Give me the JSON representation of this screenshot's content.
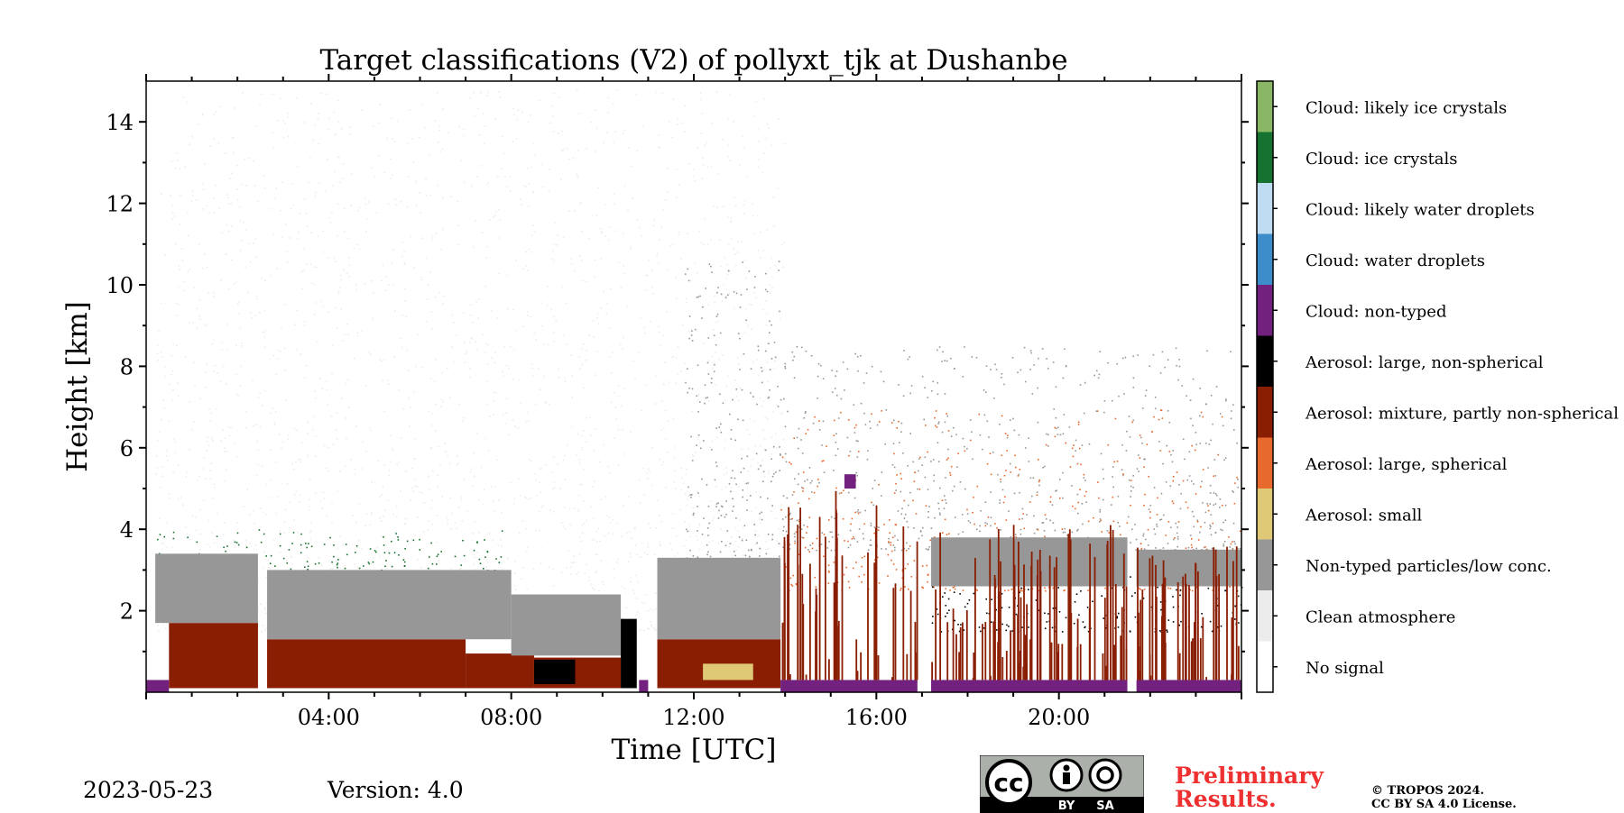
{
  "chart_data": {
    "type": "heatmap",
    "title": "Target classifications (V2) of pollyxt_tjk at Dushanbe",
    "xlabel": "Time [UTC]",
    "ylabel": "Height [km]",
    "xlim_hours": [
      0,
      24
    ],
    "ylim_km": [
      0,
      15
    ],
    "x_ticks": [
      {
        "hour": 4,
        "label": "04:00"
      },
      {
        "hour": 8,
        "label": "08:00"
      },
      {
        "hour": 12,
        "label": "12:00"
      },
      {
        "hour": 16,
        "label": "16:00"
      },
      {
        "hour": 20,
        "label": "20:00"
      }
    ],
    "y_ticks": [
      {
        "value": 2,
        "label": "2"
      },
      {
        "value": 4,
        "label": "4"
      },
      {
        "value": 6,
        "label": "6"
      },
      {
        "value": 8,
        "label": "8"
      },
      {
        "value": 10,
        "label": "10"
      },
      {
        "value": 12,
        "label": "12"
      },
      {
        "value": 14,
        "label": "14"
      }
    ],
    "legend_placement": "right colorbar",
    "classes": [
      {
        "code": 0,
        "label": "No signal",
        "color": "#ffffff"
      },
      {
        "code": 1,
        "label": "Clean atmosphere",
        "color": "#ececec"
      },
      {
        "code": 2,
        "label": "Non-typed particles/low conc.",
        "color": "#979797"
      },
      {
        "code": 3,
        "label": "Aerosol: small",
        "color": "#dfc977"
      },
      {
        "code": 4,
        "label": "Aerosol: large, spherical",
        "color": "#e8692d"
      },
      {
        "code": 5,
        "label": "Aerosol: mixture, partly non-spherical",
        "color": "#8a1e03"
      },
      {
        "code": 6,
        "label": "Aerosol: large, non-spherical",
        "color": "#000000"
      },
      {
        "code": 7,
        "label": "Cloud: non-typed",
        "color": "#72217e"
      },
      {
        "code": 8,
        "label": "Cloud: water droplets",
        "color": "#3c8dc9"
      },
      {
        "code": 9,
        "label": "Cloud: likely water droplets",
        "color": "#bfdcf3"
      },
      {
        "code": 10,
        "label": "Cloud: ice crystals",
        "color": "#167230"
      },
      {
        "code": 11,
        "label": "Cloud: likely ice crystals",
        "color": "#8ab766"
      }
    ],
    "regions": [
      {
        "class": 5,
        "t0": 0.5,
        "t1": 2.45,
        "h0": 0.1,
        "h1": 1.7
      },
      {
        "class": 5,
        "t0": 2.65,
        "t1": 7.0,
        "h0": 0.1,
        "h1": 1.3
      },
      {
        "class": 5,
        "t0": 7.0,
        "t1": 8.5,
        "h0": 0.1,
        "h1": 0.95
      },
      {
        "class": 5,
        "t0": 8.5,
        "t1": 10.4,
        "h0": 0.1,
        "h1": 0.85
      },
      {
        "class": 5,
        "t0": 11.2,
        "t1": 13.9,
        "h0": 0.1,
        "h1": 1.3
      },
      {
        "class": 2,
        "t0": 0.2,
        "t1": 2.45,
        "h0": 1.7,
        "h1": 3.4
      },
      {
        "class": 2,
        "t0": 2.65,
        "t1": 8.0,
        "h0": 1.3,
        "h1": 3.0
      },
      {
        "class": 2,
        "t0": 8.0,
        "t1": 10.4,
        "h0": 0.9,
        "h1": 2.4
      },
      {
        "class": 2,
        "t0": 11.2,
        "t1": 13.9,
        "h0": 1.3,
        "h1": 3.3
      },
      {
        "class": 6,
        "t0": 8.5,
        "t1": 9.4,
        "h0": 0.2,
        "h1": 0.8
      },
      {
        "class": 6,
        "t0": 10.4,
        "t1": 10.75,
        "h0": 0.1,
        "h1": 1.8
      },
      {
        "class": 3,
        "t0": 12.2,
        "t1": 13.3,
        "h0": 0.3,
        "h1": 0.7
      },
      {
        "class": 7,
        "t0": 0.0,
        "t1": 0.5,
        "h0": 0.0,
        "h1": 0.3
      },
      {
        "class": 7,
        "t0": 10.8,
        "t1": 11.0,
        "h0": 0.0,
        "h1": 0.3
      },
      {
        "class": 7,
        "t0": 13.9,
        "t1": 16.9,
        "h0": 0.0,
        "h1": 0.3
      },
      {
        "class": 7,
        "t0": 17.2,
        "t1": 21.5,
        "h0": 0.0,
        "h1": 0.3
      },
      {
        "class": 7,
        "t0": 21.7,
        "t1": 24.0,
        "h0": 0.0,
        "h1": 0.3
      },
      {
        "class": 7,
        "t0": 15.3,
        "t1": 15.55,
        "h0": 5.0,
        "h1": 5.35
      },
      {
        "class": 2,
        "t0": 17.2,
        "t1": 21.5,
        "h0": 2.6,
        "h1": 3.8
      },
      {
        "class": 2,
        "t0": 21.7,
        "t1": 24.0,
        "h0": 2.6,
        "h1": 3.5
      }
    ],
    "profiles": [
      {
        "class": 5,
        "t0": 13.9,
        "t1": 16.9,
        "h_max": 5.0,
        "count": 48
      },
      {
        "class": 5,
        "t0": 17.2,
        "t1": 21.5,
        "h_max": 4.2,
        "count": 80
      },
      {
        "class": 5,
        "t0": 21.7,
        "t1": 24.0,
        "h_max": 3.6,
        "count": 44
      }
    ],
    "speckle": [
      {
        "class": 1,
        "t0": 0.2,
        "t1": 14.0,
        "h0": 1.5,
        "h1": 14.8,
        "n": 2400
      },
      {
        "class": 2,
        "t0": 13.9,
        "t1": 24.0,
        "h0": 3.5,
        "h1": 8.5,
        "n": 700
      },
      {
        "class": 4,
        "t0": 13.9,
        "t1": 24.0,
        "h0": 2.5,
        "h1": 7.0,
        "n": 500
      },
      {
        "class": 10,
        "t0": 0.2,
        "t1": 7.8,
        "h0": 2.9,
        "h1": 4.0,
        "n": 160
      },
      {
        "class": 6,
        "t0": 17.2,
        "t1": 24.0,
        "h0": 1.5,
        "h1": 3.0,
        "n": 220
      },
      {
        "class": 2,
        "t0": 11.8,
        "t1": 13.9,
        "h0": 3.0,
        "h1": 10.6,
        "n": 260
      }
    ]
  },
  "footer": {
    "date": "2023-05-23",
    "version": "Version: 4.0",
    "preliminary_line1": "Preliminary",
    "preliminary_line2": "Results.",
    "copyright_line1": "© TROPOS 2024.",
    "copyright_line2": "CC BY SA 4.0 License."
  },
  "cc_badge": {
    "cc_text": "cc",
    "by_text": "BY",
    "sa_text": "SA"
  }
}
